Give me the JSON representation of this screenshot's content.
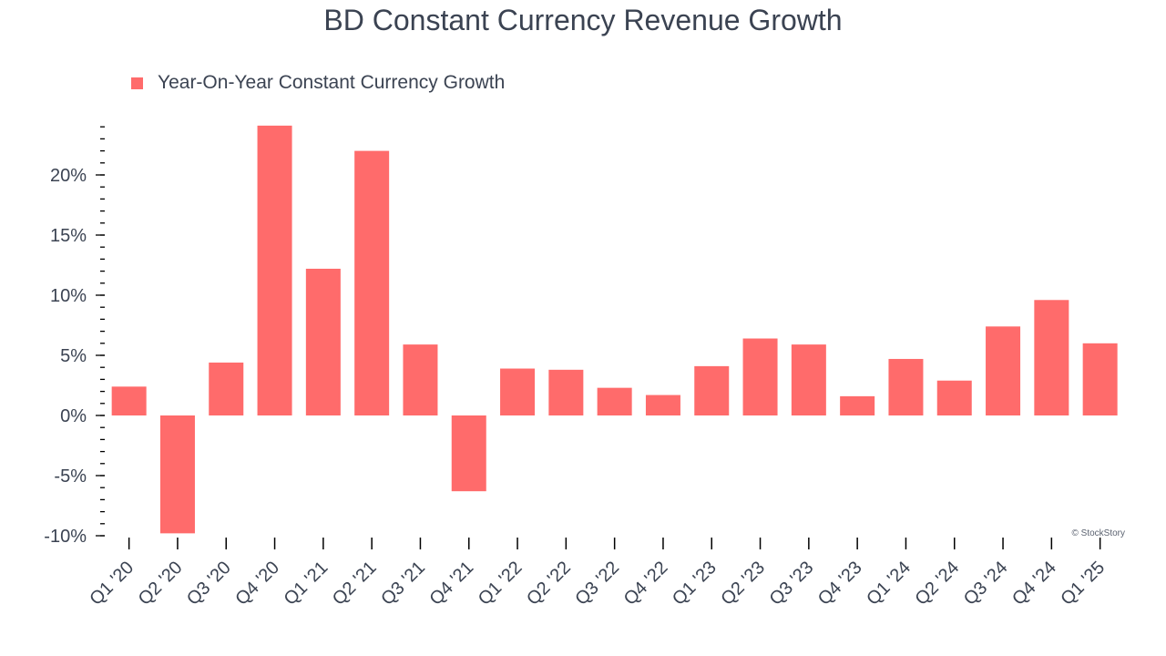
{
  "chart_data": {
    "type": "bar",
    "title": "BD Constant Currency Revenue Growth",
    "legend": {
      "label": "Year-On-Year Constant Currency Growth",
      "placement": "top-left"
    },
    "categories": [
      "Q1 '20",
      "Q2 '20",
      "Q3 '20",
      "Q4 '20",
      "Q1 '21",
      "Q2 '21",
      "Q3 '21",
      "Q4 '21",
      "Q1 '22",
      "Q2 '22",
      "Q3 '22",
      "Q4 '22",
      "Q1 '23",
      "Q2 '23",
      "Q3 '23",
      "Q4 '23",
      "Q1 '24",
      "Q2 '24",
      "Q3 '24",
      "Q4 '24",
      "Q1 '25"
    ],
    "series": [
      {
        "name": "Year-On-Year Constant Currency Growth",
        "values": [
          2.4,
          -9.8,
          4.4,
          24.1,
          12.2,
          22.0,
          5.9,
          -6.3,
          3.9,
          3.8,
          2.3,
          1.7,
          4.1,
          6.4,
          5.9,
          1.6,
          4.7,
          2.9,
          7.4,
          9.6,
          6.0
        ]
      }
    ],
    "xlabel": "",
    "ylabel": "",
    "ylim": [
      -10,
      24.5
    ],
    "yticks": [
      {
        "value": -10,
        "label": "-10%"
      },
      {
        "value": -5,
        "label": "-5%"
      },
      {
        "value": 0,
        "label": "0%"
      },
      {
        "value": 5,
        "label": "5%"
      },
      {
        "value": 10,
        "label": "10%"
      },
      {
        "value": 15,
        "label": "15%"
      },
      {
        "value": 20,
        "label": "20%"
      }
    ],
    "grid": false,
    "bar_color": "#ff6b6b"
  },
  "watermark": "© StockStory"
}
